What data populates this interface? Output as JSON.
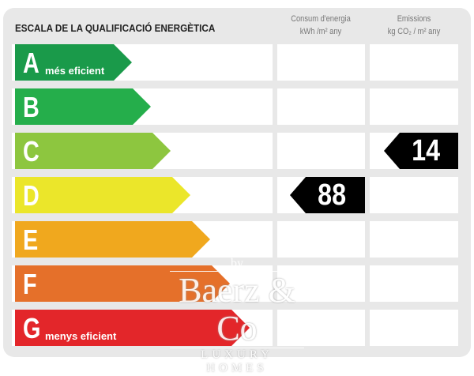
{
  "title": "ESCALA DE LA QUALIFICACIÓ ENERGÈTICA",
  "columns": [
    {
      "line1": "Consum d'energia",
      "line2": "kWh /m² any"
    },
    {
      "line1": "Emissions",
      "line2": "kg CO₂ / m² any"
    }
  ],
  "ratings": [
    {
      "letter": "A",
      "label": "més eficient",
      "color": "#1a9a4a"
    },
    {
      "letter": "B",
      "label": "",
      "color": "#25ae4b"
    },
    {
      "letter": "C",
      "label": "",
      "color": "#8dc63f"
    },
    {
      "letter": "D",
      "label": "",
      "color": "#ebe62a"
    },
    {
      "letter": "E",
      "label": "",
      "color": "#f0a81e"
    },
    {
      "letter": "F",
      "label": "",
      "color": "#e5702a"
    },
    {
      "letter": "G",
      "label": "menys eficient",
      "color": "#e3262a"
    }
  ],
  "consumption": {
    "rating": "D",
    "value": "88"
  },
  "emissions": {
    "rating": "C",
    "value": "14"
  },
  "watermark": {
    "by": "by",
    "name": "Baerz & Co",
    "tagline": "LUXURY HOMES"
  }
}
